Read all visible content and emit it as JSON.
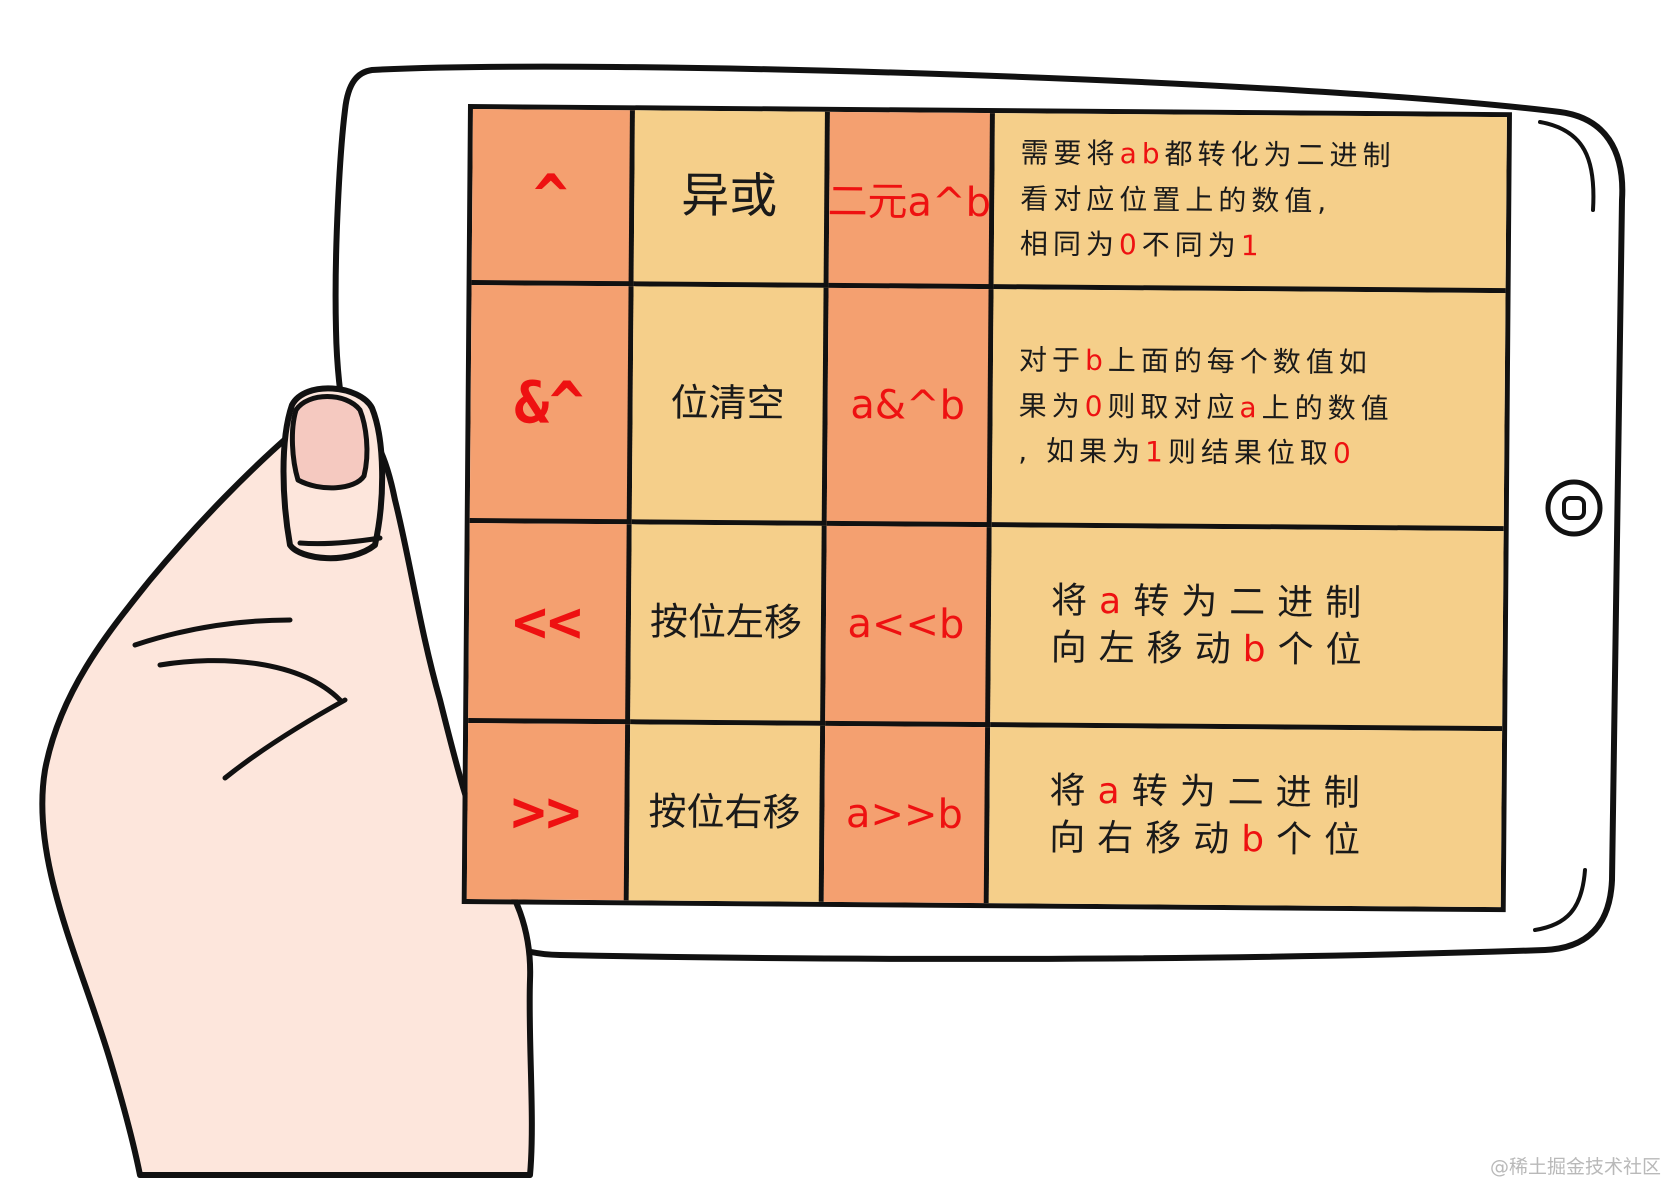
{
  "rows": [
    {
      "operator": "^",
      "name": "异或",
      "example": "二元a^b",
      "description": [
        [
          {
            "t": "需要将"
          },
          {
            "t": "ab",
            "red": true
          },
          {
            "t": "都转化为二进制"
          }
        ],
        [
          {
            "t": "看对应位置上的数值,"
          }
        ],
        [
          {
            "t": "相同为"
          },
          {
            "t": "0",
            "red": true
          },
          {
            "t": "不同为"
          },
          {
            "t": "1",
            "red": true
          }
        ]
      ]
    },
    {
      "operator": "&^",
      "name": "位清空",
      "example": "a&^b",
      "description": [
        [
          {
            "t": "对于"
          },
          {
            "t": "b",
            "red": true
          },
          {
            "t": "上面的每个数值如"
          }
        ],
        [
          {
            "t": "果为"
          },
          {
            "t": "0",
            "red": true
          },
          {
            "t": "则取对应"
          },
          {
            "t": "a",
            "red": true
          },
          {
            "t": "上的数值"
          }
        ],
        [
          {
            "t": ", 如果为"
          },
          {
            "t": "1",
            "red": true
          },
          {
            "t": "则结果位取"
          },
          {
            "t": "0",
            "red": true
          }
        ]
      ]
    },
    {
      "operator": "<<",
      "name": "按位左移",
      "example": "a<<b",
      "description": [
        [
          {
            "t": "将"
          },
          {
            "t": "a",
            "red": true
          },
          {
            "t": "转为二进制"
          }
        ],
        [
          {
            "t": "向左移动"
          },
          {
            "t": "b",
            "red": true
          },
          {
            "t": "个位"
          }
        ]
      ]
    },
    {
      "operator": ">>",
      "name": "按位右移",
      "example": "a>>b",
      "description": [
        [
          {
            "t": "将"
          },
          {
            "t": "a",
            "red": true
          },
          {
            "t": "转为二进制"
          }
        ],
        [
          {
            "t": "向右移动"
          },
          {
            "t": "b",
            "red": true
          },
          {
            "t": "个位"
          }
        ]
      ]
    }
  ],
  "watermark": "@稀土掘金技术社区",
  "colors": {
    "operator_column": "#f4a070",
    "text_column": "#f5cf8a",
    "highlight_text": "#ee1111",
    "outline": "#111111",
    "skin": "#fde6dc",
    "nail": "#f5c9c0"
  },
  "icons": {
    "home_button": "home-button-icon"
  }
}
